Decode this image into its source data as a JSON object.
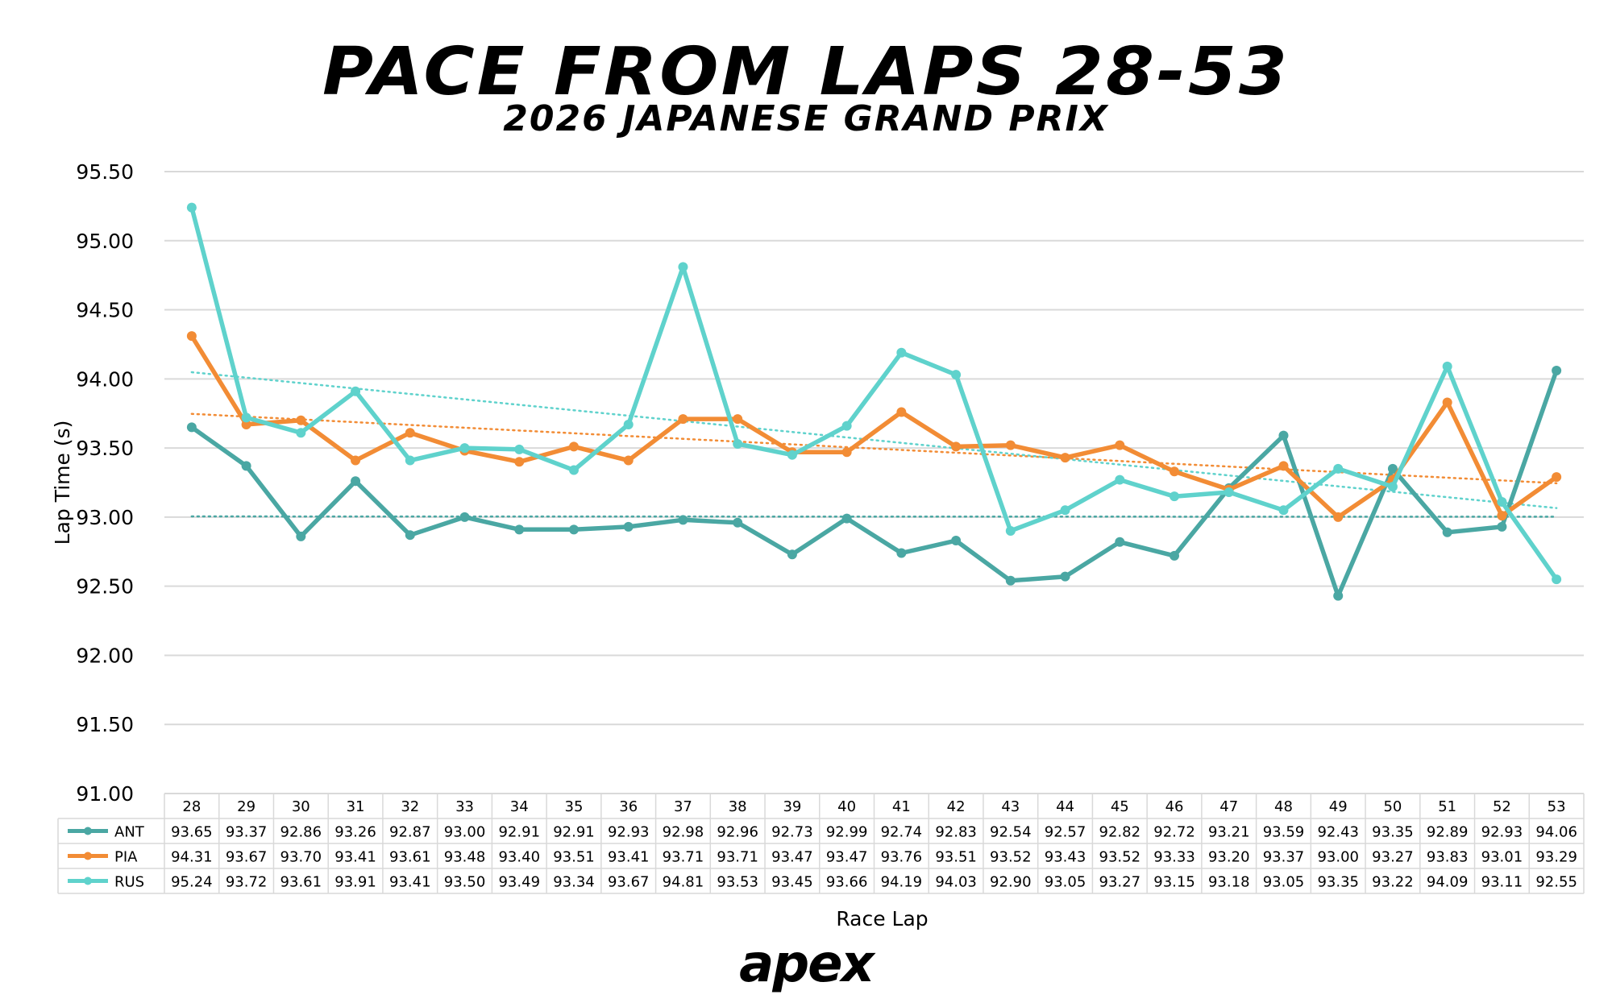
{
  "title": "PACE FROM LAPS 28-53",
  "subtitle": "2026 JAPANESE GRAND PRIX",
  "logo": "apex",
  "chart_data": {
    "type": "line",
    "title": "PACE FROM LAPS 28-53",
    "subtitle": "2026 JAPANESE GRAND PRIX",
    "xlabel": "Race Lap",
    "ylabel": "Lap Time (s)",
    "ylim": [
      91.0,
      95.5
    ],
    "yticks": [
      "91.00",
      "91.50",
      "92.00",
      "92.50",
      "93.00",
      "93.50",
      "94.00",
      "94.50",
      "95.00",
      "95.50"
    ],
    "grid": true,
    "data_table": true,
    "trendlines": true,
    "categories": [
      "28",
      "29",
      "30",
      "31",
      "32",
      "33",
      "34",
      "35",
      "36",
      "37",
      "38",
      "39",
      "40",
      "41",
      "42",
      "43",
      "44",
      "45",
      "46",
      "47",
      "48",
      "49",
      "50",
      "51",
      "52",
      "53"
    ],
    "series": [
      {
        "name": "ANT",
        "color": "#4aa7a3",
        "values": [
          93.65,
          93.37,
          92.86,
          93.26,
          92.87,
          93.0,
          92.91,
          92.91,
          92.93,
          92.98,
          92.96,
          92.73,
          92.99,
          92.74,
          92.83,
          92.54,
          92.57,
          92.82,
          92.72,
          93.21,
          93.59,
          92.43,
          93.35,
          92.89,
          92.93,
          94.06
        ]
      },
      {
        "name": "PIA",
        "color": "#f28c35",
        "values": [
          94.31,
          93.67,
          93.7,
          93.41,
          93.61,
          93.48,
          93.4,
          93.51,
          93.41,
          93.71,
          93.71,
          93.47,
          93.47,
          93.76,
          93.51,
          93.52,
          93.43,
          93.52,
          93.33,
          93.2,
          93.37,
          93.0,
          93.27,
          93.83,
          93.01,
          93.29
        ]
      },
      {
        "name": "RUS",
        "color": "#5fd2cc",
        "values": [
          95.24,
          93.72,
          93.61,
          93.91,
          93.41,
          93.5,
          93.49,
          93.34,
          93.67,
          94.81,
          93.53,
          93.45,
          93.66,
          94.19,
          94.03,
          92.9,
          93.05,
          93.27,
          93.15,
          93.18,
          93.05,
          93.35,
          93.22,
          94.09,
          93.11,
          92.55
        ]
      }
    ]
  }
}
